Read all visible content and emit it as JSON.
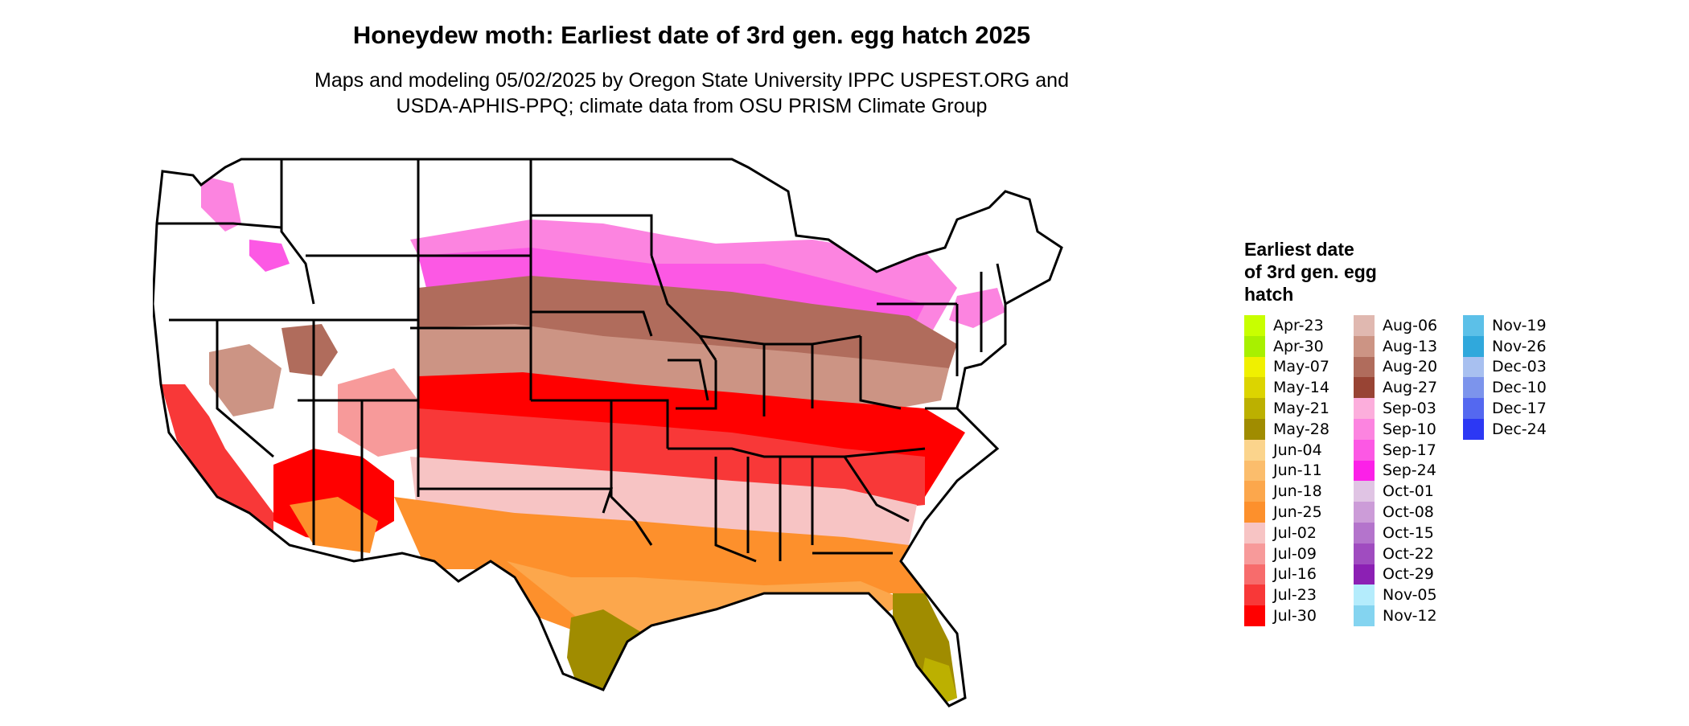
{
  "title": "Honeydew moth: Earliest date of 3rd gen. egg hatch 2025",
  "subtitle_line1": "Maps and modeling 05/02/2025 by Oregon State University IPPC USPEST.ORG and",
  "subtitle_line2": "USDA-APHIS-PPQ; climate data from OSU PRISM Climate Group",
  "legend": {
    "title_line1": "Earliest date",
    "title_line2": "of 3rd gen. egg",
    "title_line3": "hatch",
    "columns": [
      [
        {
          "label": "Apr-23",
          "color": "#c8ff00"
        },
        {
          "label": "Apr-30",
          "color": "#a8f000"
        },
        {
          "label": "May-07",
          "color": "#f0f000"
        },
        {
          "label": "May-14",
          "color": "#dcd400"
        },
        {
          "label": "May-21",
          "color": "#bcb000"
        },
        {
          "label": "May-28",
          "color": "#a08c00"
        },
        {
          "label": "Jun-04",
          "color": "#fbd48c"
        },
        {
          "label": "Jun-11",
          "color": "#fbbd6c"
        },
        {
          "label": "Jun-18",
          "color": "#fca74c"
        },
        {
          "label": "Jun-25",
          "color": "#fd902c"
        },
        {
          "label": "Jul-02",
          "color": "#f7c4c4"
        },
        {
          "label": "Jul-09",
          "color": "#f79a9a"
        },
        {
          "label": "Jul-16",
          "color": "#f76c6c"
        },
        {
          "label": "Jul-23",
          "color": "#f83838"
        },
        {
          "label": "Jul-30",
          "color": "#ff0000"
        }
      ],
      [
        {
          "label": "Aug-06",
          "color": "#e0b8b0"
        },
        {
          "label": "Aug-13",
          "color": "#cc9484"
        },
        {
          "label": "Aug-20",
          "color": "#b06c5c"
        },
        {
          "label": "Aug-27",
          "color": "#984434"
        },
        {
          "label": "Sep-03",
          "color": "#fcaedc"
        },
        {
          "label": "Sep-10",
          "color": "#fc84e0"
        },
        {
          "label": "Sep-17",
          "color": "#fc58e4"
        },
        {
          "label": "Sep-24",
          "color": "#fc20e8"
        },
        {
          "label": "Oct-01",
          "color": "#e0c4e4"
        },
        {
          "label": "Oct-08",
          "color": "#cc9cd8"
        },
        {
          "label": "Oct-15",
          "color": "#b474cc"
        },
        {
          "label": "Oct-22",
          "color": "#a04cc0"
        },
        {
          "label": "Oct-29",
          "color": "#8c20b4"
        },
        {
          "label": "Nov-05",
          "color": "#b4ecfc"
        },
        {
          "label": "Nov-12",
          "color": "#84d4f0"
        }
      ],
      [
        {
          "label": "Nov-19",
          "color": "#5cc0e8"
        },
        {
          "label": "Nov-26",
          "color": "#30a8dc"
        },
        {
          "label": "Dec-03",
          "color": "#a8c0f0"
        },
        {
          "label": "Dec-10",
          "color": "#7c94ec"
        },
        {
          "label": "Dec-17",
          "color": "#5468f0"
        },
        {
          "label": "Dec-24",
          "color": "#2c38f4"
        }
      ]
    ]
  }
}
